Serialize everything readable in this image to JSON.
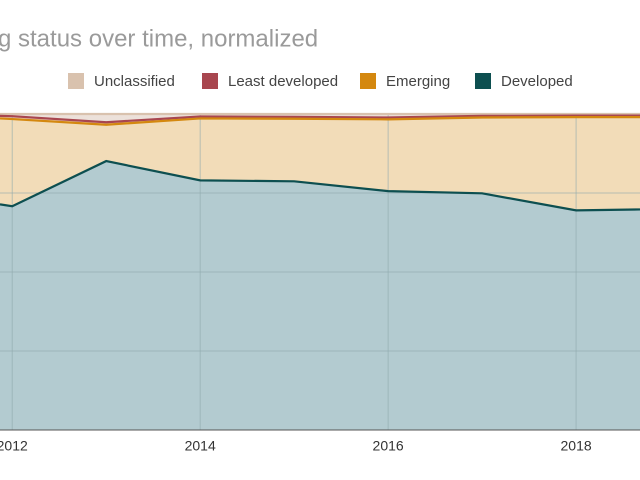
{
  "chart_data": {
    "type": "stacked_area",
    "title": "g status over time, normalized",
    "x": [
      2011.87,
      2012,
      2013,
      2014,
      2015,
      2016,
      2017,
      2018,
      2018.68
    ],
    "xlim": [
      2011.87,
      2018.68
    ],
    "xticks": [
      2012,
      2014,
      2016,
      2018
    ],
    "ylim": [
      0,
      100
    ],
    "yticks": [
      0,
      25,
      50,
      75,
      100
    ],
    "grid": true,
    "series": [
      {
        "name": "Developed",
        "color": "#0d4f50",
        "fill": "#b3cbd0",
        "values": [
          71.4,
          70.8,
          85.1,
          79.0,
          78.7,
          75.6,
          74.9,
          69.5,
          69.8
        ]
      },
      {
        "name": "Emerging",
        "color": "#d4880f",
        "fill": "#f2dcb8",
        "values": [
          27.2,
          27.6,
          11.5,
          19.6,
          19.8,
          22.7,
          24.0,
          29.5,
          29.2
        ]
      },
      {
        "name": "Least developed",
        "color": "#a8464f",
        "fill": "#e6c4b0",
        "values": [
          0.8,
          0.9,
          0.8,
          0.6,
          0.6,
          0.6,
          0.5,
          0.5,
          0.5
        ]
      },
      {
        "name": "Unclassified",
        "color": "#d9c2ae",
        "fill": "#ece1da",
        "values": [
          0.6,
          0.7,
          2.6,
          0.8,
          0.9,
          1.1,
          0.6,
          0.5,
          0.5
        ]
      }
    ],
    "legend_order": [
      3,
      2,
      1,
      0
    ]
  }
}
